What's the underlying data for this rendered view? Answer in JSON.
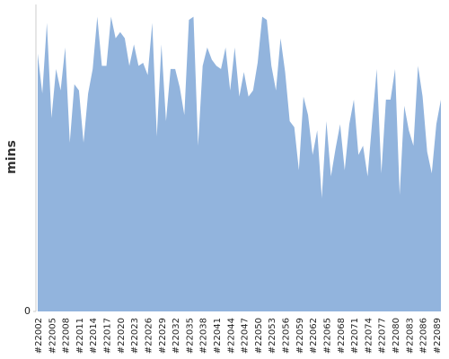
{
  "chart_data": {
    "type": "area",
    "y_label": "mins",
    "color": "#92b4dd",
    "categories": [
      "#22002",
      null,
      null,
      "#22005",
      null,
      null,
      "#22008",
      null,
      null,
      "#22011",
      null,
      null,
      "#22014",
      null,
      null,
      "#22017",
      null,
      null,
      "#22020",
      null,
      null,
      "#22023",
      null,
      null,
      "#22026",
      null,
      null,
      "#22029",
      null,
      null,
      "#22032",
      null,
      null,
      "#22035",
      null,
      null,
      "#22038",
      null,
      null,
      "#22041",
      null,
      null,
      "#22044",
      null,
      null,
      "#22047",
      null,
      null,
      "#22050",
      null,
      null,
      "#22053",
      null,
      null,
      "#22056",
      null,
      null,
      "#22059",
      null,
      null,
      "#22062",
      null,
      null,
      "#22065",
      null,
      null,
      "#22068",
      null,
      null,
      "#22071",
      null,
      null,
      "#22074",
      null,
      null,
      "#22077",
      null,
      null,
      "#22080",
      null,
      null,
      "#22083",
      null,
      null,
      "#22086",
      null,
      null,
      "#22089",
      null
    ],
    "values": [
      84,
      71,
      94,
      63,
      79,
      72,
      86,
      55,
      74,
      72,
      55,
      71,
      79,
      96,
      80,
      80,
      96,
      89,
      91,
      89,
      80,
      87,
      80,
      81,
      77,
      94,
      57,
      87,
      62,
      79,
      79,
      73,
      64,
      95,
      96,
      54,
      80,
      86,
      82,
      80,
      79,
      86,
      72,
      86,
      70,
      78,
      70,
      72,
      81,
      96,
      95,
      80,
      72,
      89,
      78,
      62,
      60,
      46,
      70,
      64,
      51,
      59,
      37,
      62,
      44,
      53,
      61,
      46,
      61,
      69,
      51,
      54,
      44,
      62,
      79,
      45,
      69,
      69,
      79,
      38,
      67,
      59,
      54,
      80,
      70,
      52,
      45,
      61,
      69
    ],
    "ylim": [
      0,
      100
    ],
    "yticks": [
      0
    ]
  }
}
